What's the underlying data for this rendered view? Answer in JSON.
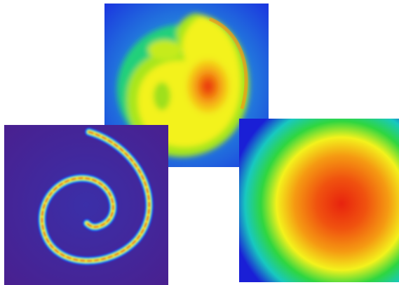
{
  "image": {
    "panels": [
      {
        "id": "top",
        "depicts": "swirling-vortex-heatmap"
      },
      {
        "id": "right",
        "depicts": "radial-gradient-heatmap"
      },
      {
        "id": "left",
        "depicts": "spiral-wave-on-purple"
      }
    ],
    "palette": {
      "background": "#ffffff",
      "deep_blue": "#1a1fd6",
      "cyan": "#18c8e6",
      "green": "#25d646",
      "yellow": "#f3f21c",
      "orange": "#f59a12",
      "red": "#e8230e",
      "purple": "#4a1f8e"
    }
  }
}
